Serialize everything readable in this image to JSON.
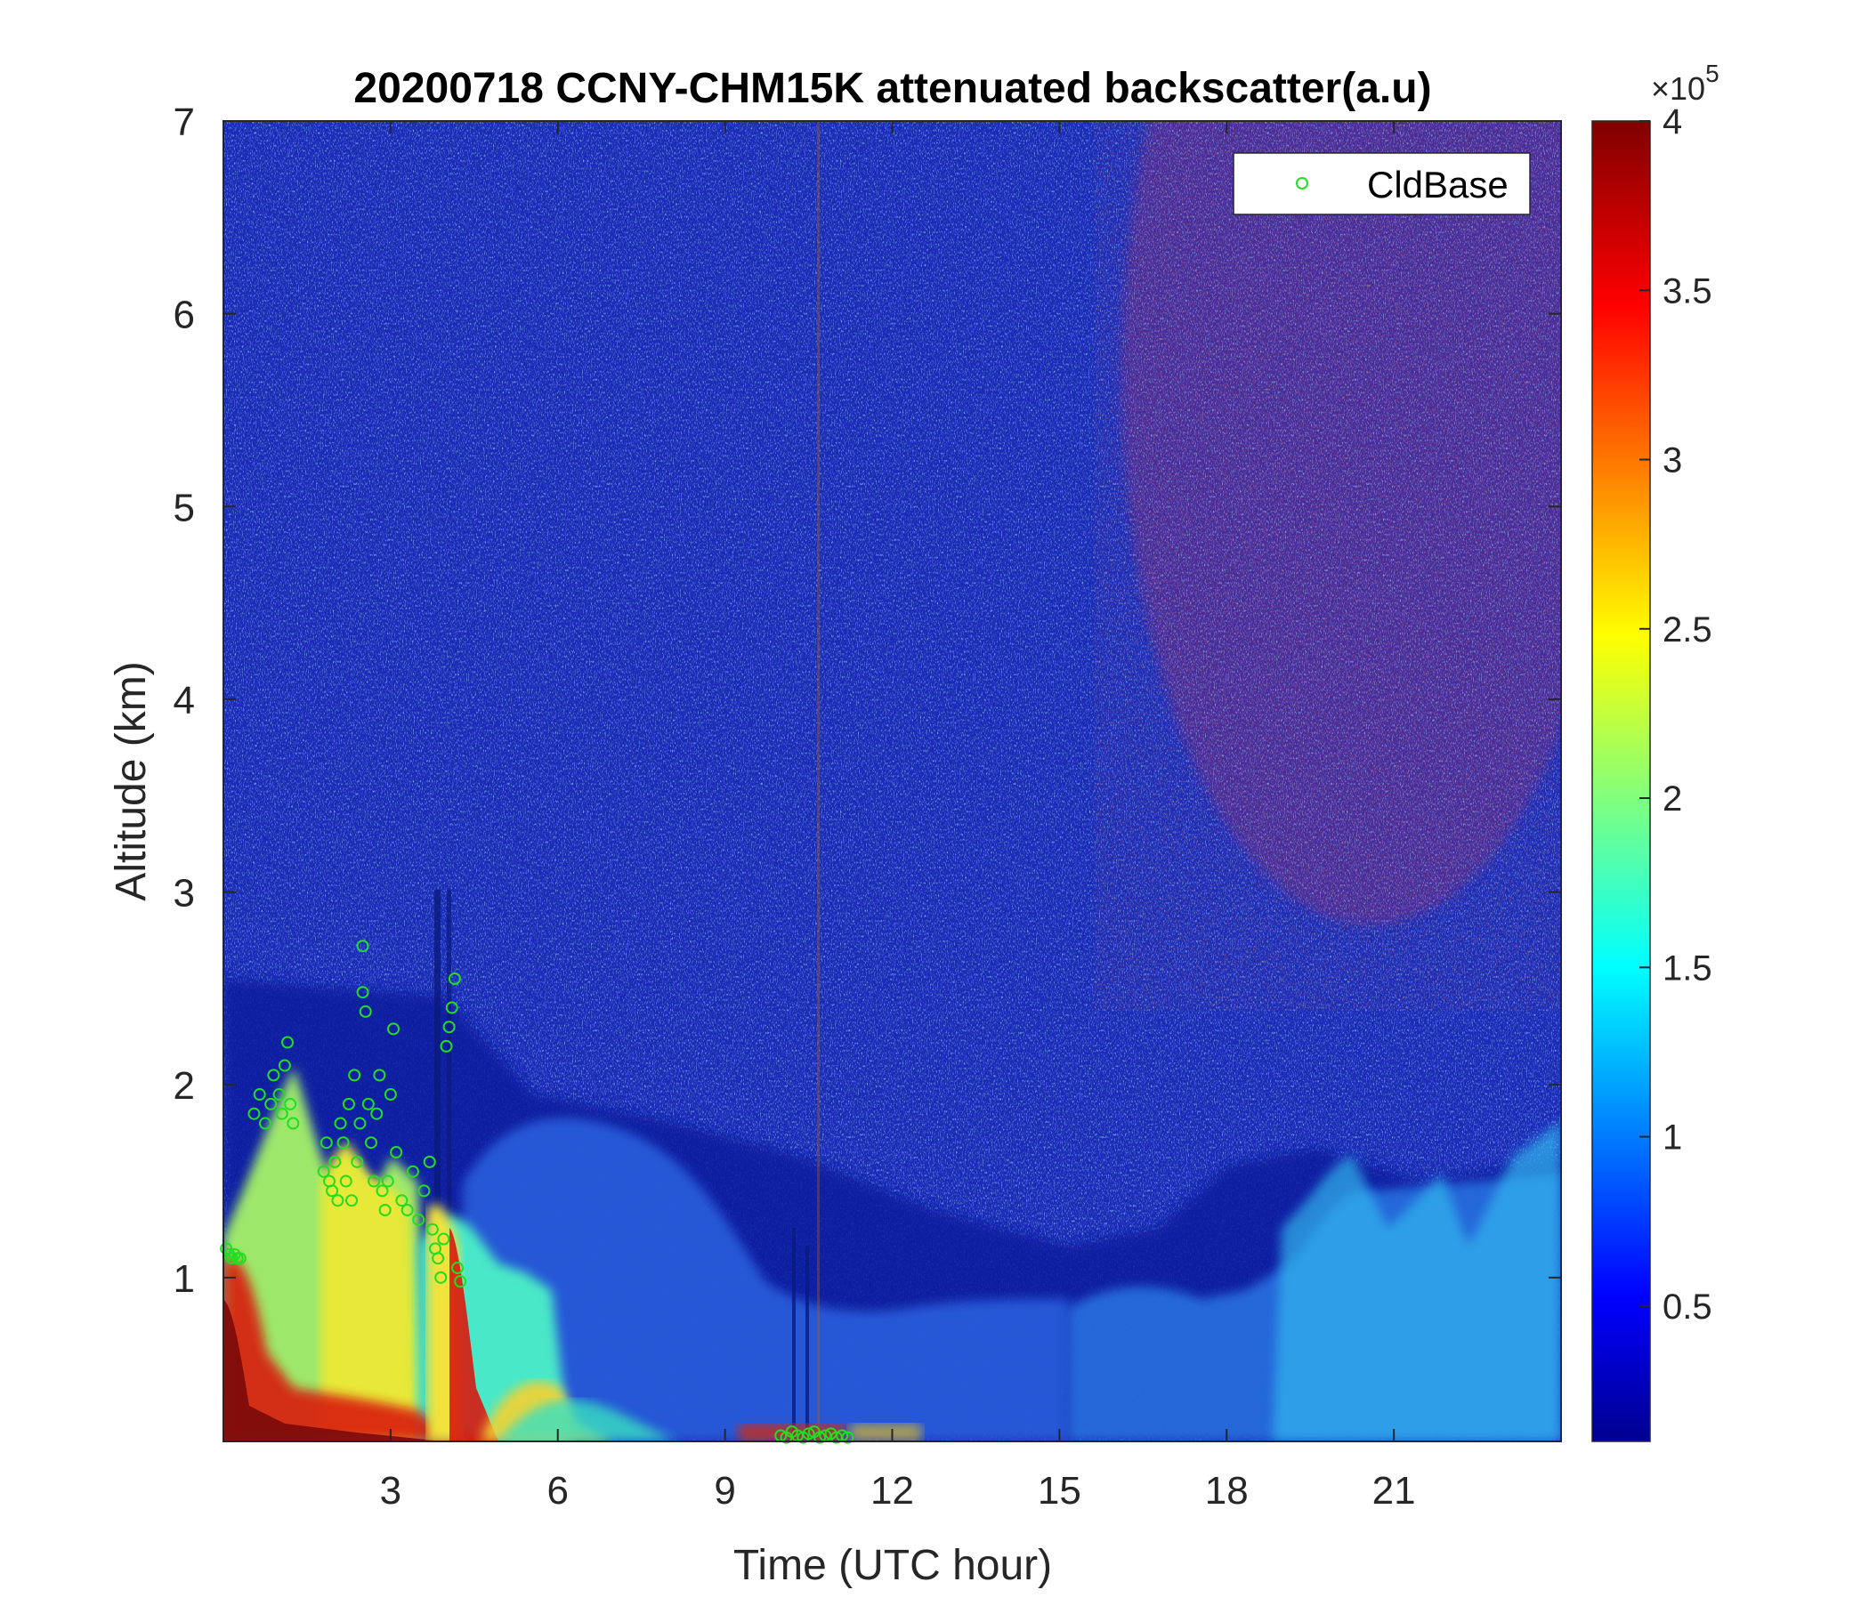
{
  "chart_data": {
    "type": "heatmap",
    "title": "20200718 CCNY-CHM15K attenuated backscatter(a.u)",
    "xlabel": "Time (UTC hour)",
    "ylabel": "Altitude (km)",
    "xlim": [
      0,
      24
    ],
    "ylim": [
      0.15,
      7
    ],
    "xticks": [
      3,
      6,
      9,
      12,
      15,
      18,
      21
    ],
    "xtick_labels": [
      "3",
      "6",
      "9",
      "12",
      "15",
      "18",
      "21"
    ],
    "yticks": [
      1,
      2,
      3,
      4,
      5,
      6,
      7
    ],
    "ytick_labels": [
      "1",
      "2",
      "3",
      "4",
      "5",
      "6",
      "7"
    ],
    "colorbar": {
      "colormap": "jet",
      "clim": [
        0.1,
        4
      ],
      "ticks": [
        0.5,
        1,
        1.5,
        2,
        2.5,
        3,
        3.5,
        4
      ],
      "tick_labels": [
        "0.5",
        "1",
        "1.5",
        "2",
        "2.5",
        "3",
        "3.5",
        "4"
      ],
      "multiplier_prefix": "×10",
      "multiplier_exponent": "5"
    },
    "legend": {
      "location": "top-right",
      "entries": [
        "CldBase"
      ]
    },
    "colors": {
      "cloud_base_marker": "#22dd22",
      "background_deep": "#0a1a8c",
      "aerosol_layer": "#1e64e6"
    },
    "series": [
      {
        "name": "CldBase",
        "marker": "open-circle",
        "x": [
          0.05,
          0.1,
          0.15,
          0.2,
          0.25,
          0.3,
          0.55,
          0.65,
          0.75,
          0.85,
          0.9,
          1.0,
          1.05,
          1.1,
          1.15,
          1.2,
          1.25,
          1.8,
          1.85,
          1.9,
          1.95,
          2.0,
          2.05,
          2.1,
          2.15,
          2.2,
          2.25,
          2.3,
          2.35,
          2.4,
          2.45,
          2.5,
          2.5,
          2.55,
          2.6,
          2.65,
          2.7,
          2.75,
          2.8,
          2.85,
          2.9,
          2.95,
          3.0,
          3.05,
          3.1,
          3.2,
          3.3,
          3.4,
          3.5,
          3.6,
          3.7,
          3.75,
          3.8,
          3.85,
          3.9,
          3.95,
          4.0,
          4.05,
          4.1,
          4.15,
          4.2,
          4.25,
          10.0,
          10.1,
          10.2,
          10.3,
          10.4,
          10.5,
          10.6,
          10.7,
          10.8,
          10.9,
          11.0,
          11.1,
          11.2
        ],
        "y": [
          1.15,
          1.12,
          1.1,
          1.12,
          1.1,
          1.1,
          1.85,
          1.95,
          1.8,
          1.9,
          2.05,
          1.95,
          1.85,
          2.1,
          2.22,
          1.9,
          1.8,
          1.55,
          1.7,
          1.5,
          1.45,
          1.6,
          1.4,
          1.8,
          1.7,
          1.5,
          1.9,
          1.4,
          2.05,
          1.6,
          1.8,
          2.72,
          2.48,
          2.38,
          1.9,
          1.7,
          1.5,
          1.85,
          2.05,
          1.45,
          1.35,
          1.5,
          1.95,
          2.29,
          1.65,
          1.4,
          1.35,
          1.55,
          1.3,
          1.45,
          1.6,
          1.25,
          1.15,
          1.1,
          1.0,
          1.2,
          2.2,
          2.3,
          2.4,
          2.55,
          1.05,
          0.98,
          0.18,
          0.17,
          0.2,
          0.18,
          0.17,
          0.19,
          0.2,
          0.17,
          0.18,
          0.19,
          0.17,
          0.18,
          0.17
        ]
      }
    ]
  }
}
